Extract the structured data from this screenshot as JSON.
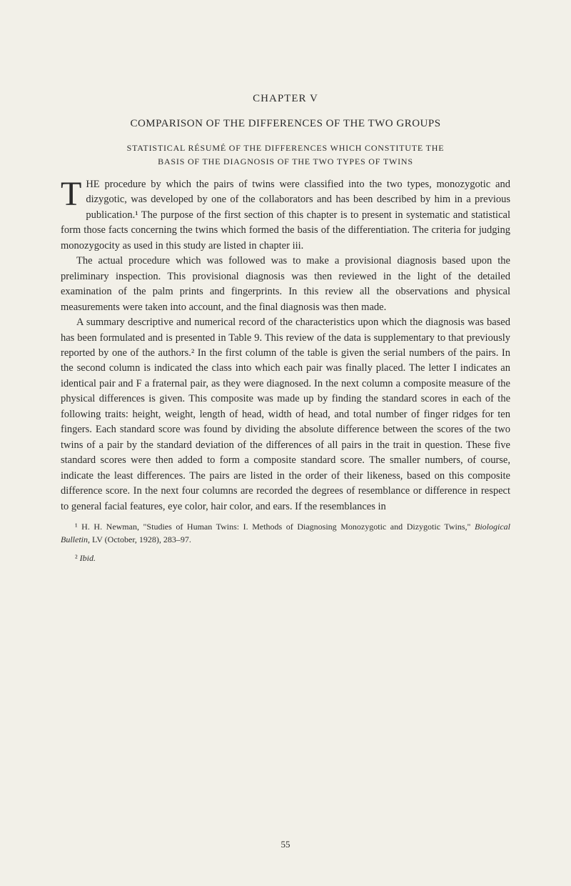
{
  "page": {
    "background_color": "#f2f0e8",
    "text_color": "#2a2a2a",
    "font_family": "Georgia, 'Times New Roman', serif",
    "body_fontsize": 14.5,
    "line_height": 1.48,
    "page_number": "55"
  },
  "chapter": {
    "label": "CHAPTER V"
  },
  "section": {
    "title": "COMPARISON OF THE DIFFERENCES OF THE TWO GROUPS"
  },
  "subsection": {
    "line1": "STATISTICAL RÉSUMÉ OF THE DIFFERENCES WHICH CONSTITUTE THE",
    "line2": "BASIS OF THE DIAGNOSIS OF THE TWO TYPES OF TWINS"
  },
  "paragraphs": {
    "p1_dropcap": "T",
    "p1_text": "HE procedure by which the pairs of twins were classified into the two types, monozygotic and dizygotic, was developed by one of the collaborators and has been described by him in a previous publication.¹ The purpose of the first section of this chapter is to present in systematic and statistical form those facts concerning the twins which formed the basis of the differentiation. The criteria for judging monozygocity as used in this study are listed in chapter iii.",
    "p2_text": "The actual procedure which was followed was to make a provisional diagnosis based upon the preliminary inspection. This provisional diagnosis was then reviewed in the light of the detailed examination of the palm prints and fingerprints. In this review all the observations and physical measurements were taken into account, and the final diagnosis was then made.",
    "p3_text": "A summary descriptive and numerical record of the characteristics upon which the diagnosis was based has been formulated and is presented in Table 9. This review of the data is supplementary to that previously reported by one of the authors.² In the first column of the table is given the serial numbers of the pairs. In the second column is indicated the class into which each pair was finally placed. The letter I indicates an identical pair and F a fraternal pair, as they were diagnosed. In the next column a composite measure of the physical differences is given. This composite was made up by finding the standard scores in each of the following traits: height, weight, length of head, width of head, and total number of finger ridges for ten fingers. Each standard score was found by dividing the absolute difference between the scores of the two twins of a pair by the standard deviation of the differences of all pairs in the trait in question. These five standard scores were then added to form a composite standard score. The smaller numbers, of course, indicate the least differences. The pairs are listed in the order of their likeness, based on this composite difference score. In the next four columns are recorded the degrees of resemblance or difference in respect to general facial features, eye color, hair color, and ears. If the resemblances in"
  },
  "footnotes": {
    "fn1_marker": "¹",
    "fn1_text": " H. H. Newman, \"Studies of Human Twins: I. Methods of Diagnosing Monozygotic and Dizygotic Twins,\" ",
    "fn1_italic": "Biological Bulletin",
    "fn1_text_end": ", LV (October, 1928), 283–97.",
    "fn2_marker": "²",
    "fn2_italic": " Ibid."
  }
}
